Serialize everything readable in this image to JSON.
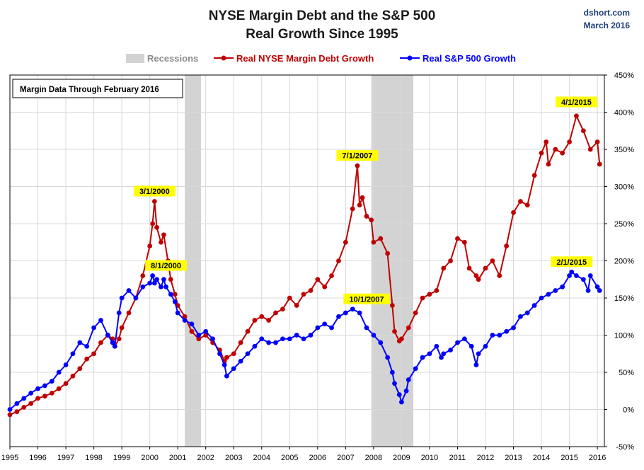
{
  "header": {
    "title_line1": "NYSE Margin Debt and the S&P 500",
    "title_line2": "Real Growth Since 1995",
    "source": "dshort.com",
    "date": "March 2016"
  },
  "note": "Margin Data Through February 2016",
  "colors": {
    "margin": "#c00000",
    "sp500": "#0000ff",
    "recession": "#d3d3d3",
    "annotation": "#ffff00"
  },
  "chart_data": {
    "type": "line",
    "title": "NYSE Margin Debt and the S&P 500 Real Growth Since 1995",
    "xlabel": "",
    "ylabel": "",
    "xlim": [
      1995,
      2016.25
    ],
    "ylim": [
      -50,
      450
    ],
    "y_axis_side": "right",
    "grid": true,
    "legend_position": "top",
    "x_ticks": [
      "1995",
      "1996",
      "1997",
      "1998",
      "1999",
      "2000",
      "2001",
      "2002",
      "2003",
      "2004",
      "2005",
      "2006",
      "2007",
      "2008",
      "2009",
      "2010",
      "2011",
      "2012",
      "2013",
      "2014",
      "2015",
      "2016"
    ],
    "y_ticks": [
      "-50%",
      "0%",
      "50%",
      "100%",
      "150%",
      "200%",
      "250%",
      "300%",
      "350%",
      "400%",
      "450%"
    ],
    "legend": {
      "recessions": "Recessions",
      "margin": "Real NYSE Margin Debt Growth",
      "sp500": "Real S&P 500 Growth"
    },
    "recessions": [
      [
        2001.25,
        2001.83
      ],
      [
        2007.92,
        2009.42
      ]
    ],
    "series": [
      {
        "name": "Real NYSE Margin Debt Growth",
        "x": [
          1995.0,
          1995.25,
          1995.5,
          1995.75,
          1996.0,
          1996.25,
          1996.5,
          1996.75,
          1997.0,
          1997.25,
          1997.5,
          1997.75,
          1998.0,
          1998.25,
          1998.5,
          1998.67,
          1998.75,
          1998.9,
          1999.0,
          1999.25,
          1999.5,
          1999.75,
          2000.0,
          2000.1,
          2000.17,
          2000.25,
          2000.4,
          2000.5,
          2000.65,
          2000.75,
          2000.9,
          2001.0,
          2001.25,
          2001.5,
          2001.75,
          2002.0,
          2002.25,
          2002.5,
          2002.67,
          2002.75,
          2003.0,
          2003.25,
          2003.5,
          2003.75,
          2004.0,
          2004.25,
          2004.5,
          2004.75,
          2005.0,
          2005.25,
          2005.5,
          2005.75,
          2006.0,
          2006.25,
          2006.5,
          2006.75,
          2007.0,
          2007.25,
          2007.42,
          2007.5,
          2007.6,
          2007.75,
          2007.92,
          2008.0,
          2008.25,
          2008.5,
          2008.67,
          2008.75,
          2008.92,
          2009.0,
          2009.25,
          2009.5,
          2009.75,
          2010.0,
          2010.25,
          2010.5,
          2010.75,
          2011.0,
          2011.25,
          2011.42,
          2011.67,
          2011.75,
          2012.0,
          2012.25,
          2012.5,
          2012.75,
          2013.0,
          2013.25,
          2013.5,
          2013.75,
          2014.0,
          2014.17,
          2014.25,
          2014.5,
          2014.75,
          2015.0,
          2015.25,
          2015.5,
          2015.75,
          2016.0,
          2016.08
        ],
        "values": [
          -7,
          -3,
          3,
          8,
          15,
          18,
          22,
          28,
          35,
          45,
          55,
          68,
          75,
          90,
          100,
          95,
          85,
          95,
          110,
          130,
          150,
          180,
          220,
          250,
          280,
          245,
          225,
          235,
          200,
          175,
          155,
          140,
          125,
          105,
          95,
          100,
          90,
          80,
          65,
          70,
          75,
          90,
          105,
          120,
          125,
          120,
          130,
          135,
          150,
          140,
          155,
          160,
          175,
          165,
          180,
          200,
          225,
          270,
          328,
          275,
          285,
          260,
          255,
          225,
          230,
          210,
          140,
          105,
          92,
          95,
          110,
          130,
          150,
          155,
          160,
          190,
          200,
          230,
          225,
          190,
          180,
          175,
          190,
          200,
          180,
          220,
          265,
          280,
          275,
          315,
          345,
          360,
          330,
          350,
          345,
          360,
          395,
          375,
          350,
          360,
          330
        ]
      },
      {
        "name": "Real S&P 500 Growth",
        "x": [
          1995.0,
          1995.25,
          1995.5,
          1995.75,
          1996.0,
          1996.25,
          1996.5,
          1996.75,
          1997.0,
          1997.25,
          1997.5,
          1997.75,
          1998.0,
          1998.25,
          1998.5,
          1998.67,
          1998.75,
          1998.9,
          1999.0,
          1999.25,
          1999.5,
          1999.75,
          2000.0,
          2000.1,
          2000.17,
          2000.25,
          2000.4,
          2000.5,
          2000.58,
          2000.75,
          2000.9,
          2001.0,
          2001.25,
          2001.5,
          2001.75,
          2002.0,
          2002.25,
          2002.5,
          2002.67,
          2002.75,
          2003.0,
          2003.25,
          2003.5,
          2003.75,
          2004.0,
          2004.25,
          2004.5,
          2004.75,
          2005.0,
          2005.25,
          2005.5,
          2005.75,
          2006.0,
          2006.25,
          2006.5,
          2006.75,
          2007.0,
          2007.25,
          2007.5,
          2007.75,
          2008.0,
          2008.25,
          2008.5,
          2008.67,
          2008.75,
          2008.92,
          2009.0,
          2009.17,
          2009.25,
          2009.5,
          2009.75,
          2010.0,
          2010.25,
          2010.42,
          2010.5,
          2010.75,
          2011.0,
          2011.25,
          2011.5,
          2011.67,
          2011.75,
          2012.0,
          2012.25,
          2012.5,
          2012.75,
          2013.0,
          2013.25,
          2013.5,
          2013.75,
          2014.0,
          2014.25,
          2014.5,
          2014.75,
          2015.0,
          2015.08,
          2015.25,
          2015.5,
          2015.67,
          2015.75,
          2016.0,
          2016.08
        ],
        "values": [
          0,
          8,
          15,
          22,
          28,
          32,
          38,
          50,
          60,
          75,
          90,
          85,
          110,
          120,
          100,
          90,
          85,
          130,
          150,
          160,
          150,
          165,
          170,
          180,
          170,
          175,
          165,
          175,
          165,
          155,
          145,
          130,
          120,
          115,
          100,
          105,
          95,
          75,
          60,
          45,
          55,
          65,
          75,
          85,
          95,
          90,
          90,
          95,
          95,
          100,
          95,
          100,
          110,
          115,
          110,
          125,
          130,
          135,
          130,
          110,
          100,
          90,
          70,
          50,
          35,
          20,
          10,
          25,
          40,
          55,
          70,
          75,
          85,
          70,
          75,
          80,
          90,
          95,
          85,
          60,
          75,
          85,
          100,
          100,
          105,
          110,
          125,
          130,
          140,
          150,
          155,
          160,
          165,
          180,
          185,
          180,
          175,
          160,
          180,
          165,
          160
        ]
      }
    ],
    "annotations": [
      {
        "label": "3/1/2000",
        "series": "margin",
        "x": 2000.17,
        "y": 280
      },
      {
        "label": "8/1/2000",
        "series": "sp500",
        "x": 2000.58,
        "y": 180
      },
      {
        "label": "7/1/2007",
        "series": "margin",
        "x": 2007.42,
        "y": 328
      },
      {
        "label": "10/1/2007",
        "series": "sp500",
        "x": 2007.75,
        "y": 135
      },
      {
        "label": "4/1/2015",
        "series": "margin",
        "x": 2015.25,
        "y": 400
      },
      {
        "label": "2/1/2015",
        "series": "sp500",
        "x": 2015.08,
        "y": 185
      }
    ]
  }
}
